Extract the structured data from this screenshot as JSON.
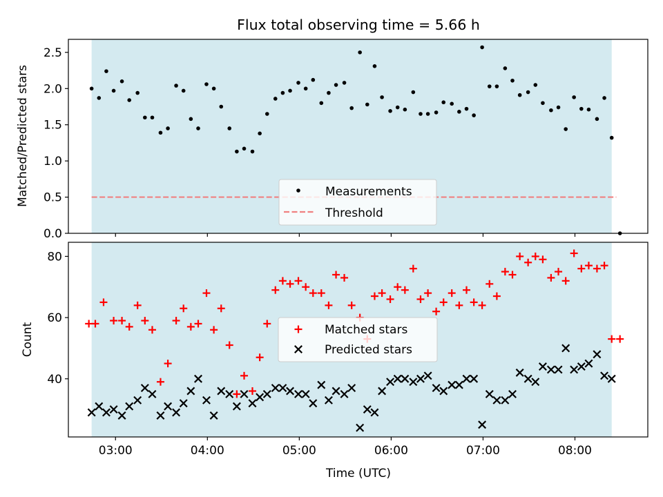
{
  "title": "Flux total observing time = 5.66 h",
  "colors": {
    "band": "#d4eaf0",
    "measurement": "#000000",
    "threshold": "#f08080",
    "matched": "#ff0000",
    "predicted": "#000000"
  },
  "chart_data": [
    {
      "type": "scatter",
      "ylabel": "Matched/Predicted stars",
      "ylim": [
        0.0,
        2.68
      ],
      "yticks": [
        0.0,
        0.5,
        1.0,
        1.5,
        2.0,
        2.5
      ],
      "ytick_labels": [
        "0.0",
        "0.5",
        "1.0",
        "1.5",
        "2.0",
        "2.5"
      ],
      "xlim_hours": [
        2.487,
        8.793
      ],
      "shaded_span_hours": [
        2.74,
        8.4
      ],
      "legend": {
        "placement": "lower-center",
        "entries": [
          "Measurements",
          "Threshold"
        ]
      },
      "threshold": {
        "name": "Threshold",
        "y": 0.5,
        "x_range_hours": [
          2.74,
          8.45
        ]
      },
      "series": [
        {
          "name": "Measurements",
          "x_hours": [
            2.74,
            2.82,
            2.9,
            2.98,
            3.07,
            3.15,
            3.24,
            3.32,
            3.4,
            3.49,
            3.57,
            3.66,
            3.74,
            3.82,
            3.9,
            3.99,
            4.07,
            4.15,
            4.24,
            4.32,
            4.4,
            4.49,
            4.57,
            4.65,
            4.74,
            4.82,
            4.9,
            4.99,
            5.07,
            5.15,
            5.24,
            5.32,
            5.4,
            5.49,
            5.57,
            5.66,
            5.74,
            5.82,
            5.9,
            5.99,
            6.07,
            6.15,
            6.24,
            6.32,
            6.4,
            6.49,
            6.57,
            6.66,
            6.74,
            6.82,
            6.9,
            6.99,
            7.07,
            7.15,
            7.24,
            7.32,
            7.4,
            7.49,
            7.57,
            7.65,
            7.74,
            7.82,
            7.9,
            7.99,
            8.07,
            8.15,
            8.24,
            8.32,
            8.4,
            8.49
          ],
          "y": [
            2.0,
            1.87,
            2.24,
            1.97,
            2.1,
            1.84,
            1.94,
            1.6,
            1.6,
            1.39,
            1.45,
            2.04,
            1.97,
            1.58,
            1.45,
            2.06,
            2.0,
            1.75,
            1.45,
            1.13,
            1.17,
            1.13,
            1.38,
            1.65,
            1.86,
            1.94,
            1.97,
            2.08,
            2.0,
            2.12,
            1.8,
            1.94,
            2.05,
            2.08,
            1.73,
            2.5,
            1.78,
            2.31,
            1.88,
            1.69,
            1.74,
            1.71,
            1.95,
            1.65,
            1.65,
            1.67,
            1.81,
            1.79,
            1.68,
            1.72,
            1.63,
            2.57,
            2.03,
            2.03,
            2.28,
            2.11,
            1.91,
            1.95,
            2.05,
            1.8,
            1.7,
            1.74,
            1.44,
            1.88,
            1.72,
            1.71,
            1.58,
            1.87,
            1.32,
            0.0
          ]
        }
      ]
    },
    {
      "type": "scatter",
      "xlabel": "Time (UTC)",
      "ylabel": "Count",
      "ylim": [
        21.0,
        84.6
      ],
      "yticks": [
        40,
        60,
        80
      ],
      "ytick_labels": [
        "40",
        "60",
        "80"
      ],
      "xlim_hours": [
        2.487,
        8.793
      ],
      "xticks_hours": [
        3,
        4,
        5,
        6,
        7,
        8
      ],
      "xtick_labels": [
        "03:00",
        "04:00",
        "05:00",
        "06:00",
        "07:00",
        "08:00"
      ],
      "shaded_span_hours": [
        2.74,
        8.4
      ],
      "legend": {
        "placement": "center",
        "entries": [
          "Matched stars",
          "Predicted stars"
        ]
      },
      "series": [
        {
          "name": "Matched stars",
          "marker": "plus",
          "x_hours": [
            2.71,
            2.78,
            2.87,
            2.98,
            3.07,
            3.15,
            3.24,
            3.32,
            3.4,
            3.49,
            3.57,
            3.66,
            3.74,
            3.82,
            3.9,
            3.99,
            4.07,
            4.15,
            4.24,
            4.32,
            4.4,
            4.49,
            4.57,
            4.65,
            4.74,
            4.82,
            4.9,
            4.99,
            5.07,
            5.15,
            5.24,
            5.32,
            5.4,
            5.49,
            5.57,
            5.66,
            5.74,
            5.82,
            5.9,
            5.99,
            6.07,
            6.15,
            6.24,
            6.32,
            6.4,
            6.49,
            6.57,
            6.66,
            6.74,
            6.82,
            6.9,
            6.99,
            7.07,
            7.15,
            7.24,
            7.32,
            7.4,
            7.49,
            7.57,
            7.65,
            7.74,
            7.82,
            7.9,
            7.99,
            8.07,
            8.15,
            8.24,
            8.32,
            8.4,
            8.49
          ],
          "y": [
            58,
            58,
            65,
            59,
            59,
            57,
            64,
            59,
            56,
            39,
            45,
            59,
            63,
            57,
            58,
            68,
            56,
            63,
            51,
            35,
            41,
            36,
            47,
            58,
            69,
            72,
            71,
            72,
            70,
            68,
            68,
            64,
            74,
            73,
            64,
            60,
            53,
            67,
            68,
            66,
            70,
            69,
            76,
            66,
            68,
            62,
            65,
            68,
            64,
            69,
            65,
            64,
            71,
            67,
            75,
            74,
            80,
            78,
            80,
            79,
            73,
            75,
            72,
            81,
            76,
            77,
            76,
            77,
            53,
            53
          ]
        },
        {
          "name": "Predicted stars",
          "marker": "x",
          "x_hours": [
            2.74,
            2.82,
            2.9,
            2.98,
            3.07,
            3.15,
            3.24,
            3.32,
            3.4,
            3.49,
            3.57,
            3.66,
            3.74,
            3.82,
            3.9,
            3.99,
            4.07,
            4.15,
            4.24,
            4.32,
            4.4,
            4.49,
            4.57,
            4.65,
            4.74,
            4.82,
            4.9,
            4.99,
            5.07,
            5.15,
            5.24,
            5.32,
            5.4,
            5.49,
            5.57,
            5.66,
            5.74,
            5.82,
            5.9,
            5.99,
            6.07,
            6.15,
            6.24,
            6.32,
            6.4,
            6.49,
            6.57,
            6.66,
            6.74,
            6.82,
            6.9,
            6.99,
            7.07,
            7.15,
            7.24,
            7.32,
            7.4,
            7.49,
            7.57,
            7.65,
            7.74,
            7.82,
            7.9,
            7.99,
            8.07,
            8.15,
            8.24,
            8.32,
            8.4
          ],
          "y": [
            29,
            31,
            29,
            30,
            28,
            31,
            33,
            37,
            35,
            28,
            31,
            29,
            32,
            36,
            40,
            33,
            28,
            36,
            35,
            31,
            35,
            32,
            34,
            35,
            37,
            37,
            36,
            35,
            35,
            32,
            38,
            33,
            36,
            35,
            37,
            24,
            30,
            29,
            36,
            39,
            40,
            40,
            39,
            40,
            41,
            37,
            36,
            38,
            38,
            40,
            40,
            25,
            35,
            33,
            33,
            35,
            42,
            40,
            39,
            44,
            43,
            43,
            50,
            43,
            44,
            45,
            48,
            41,
            40
          ]
        }
      ]
    }
  ]
}
